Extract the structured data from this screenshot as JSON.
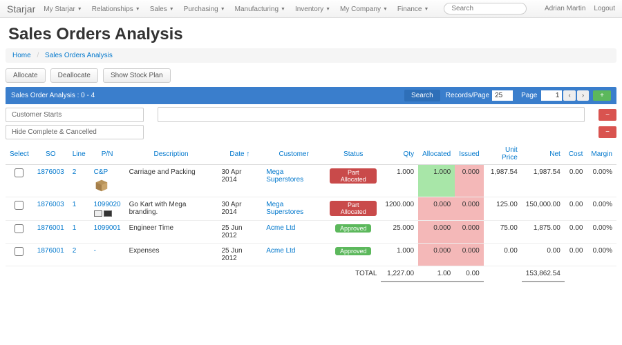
{
  "nav": {
    "brand": "Starjar",
    "items": [
      "My Starjar",
      "Relationships",
      "Sales",
      "Purchasing",
      "Manufacturing",
      "Inventory",
      "My Company",
      "Finance"
    ],
    "search_placeholder": "Search",
    "user": "Adrian Martin",
    "logout": "Logout"
  },
  "page": {
    "title": "Sales Orders Analysis",
    "breadcrumb_home": "Home",
    "breadcrumb_current": "Sales Orders Analysis"
  },
  "toolbar": {
    "allocate": "Allocate",
    "deallocate": "Deallocate",
    "show_stock": "Show Stock Plan"
  },
  "bar": {
    "title": "Sales Order Analysis : 0 - 4",
    "search": "Search",
    "records_page": "Records/Page",
    "rp_value": "25",
    "page_label": "Page",
    "page_value": "1",
    "prev": "‹",
    "next": "›",
    "plus": "+"
  },
  "filters": {
    "customer": "Customer Starts",
    "hide": "Hide Complete & Cancelled",
    "minus": "−"
  },
  "table": {
    "headers": [
      "Select",
      "SO",
      "Line",
      "P/N",
      "Description",
      "Date ↑",
      "Customer",
      "Status",
      "Qty",
      "Allocated",
      "Issued",
      "Unit Price",
      "Net",
      "Cost",
      "Margin"
    ],
    "rows": [
      {
        "so": "1876003",
        "line": "2",
        "pn": "C&P",
        "pn_icon": "box",
        "desc": "Carriage and Packing",
        "date": "30 Apr 2014",
        "cust": "Mega Superstores",
        "status": "Part Allocated",
        "status_class": "badge-part",
        "qty": "1.000",
        "alloc": "1.000",
        "alloc_class": "cell-green",
        "issued": "0.000",
        "issued_class": "cell-red",
        "unit": "1,987.54",
        "net": "1,987.54",
        "cost": "0.00",
        "margin": "0.00%"
      },
      {
        "so": "1876003",
        "line": "1",
        "pn": "1099020",
        "pn_icon": "gk",
        "desc": "Go Kart with Mega branding.",
        "date": "30 Apr 2014",
        "cust": "Mega Superstores",
        "status": "Part Allocated",
        "status_class": "badge-part",
        "qty": "1200.000",
        "alloc": "0.000",
        "alloc_class": "cell-red",
        "issued": "0.000",
        "issued_class": "cell-red",
        "unit": "125.00",
        "net": "150,000.00",
        "cost": "0.00",
        "margin": "0.00%"
      },
      {
        "so": "1876001",
        "line": "1",
        "pn": "1099001",
        "pn_icon": "",
        "desc": "Engineer Time",
        "date": "25 Jun 2012",
        "cust": "Acme Ltd",
        "status": "Approved",
        "status_class": "badge-appr",
        "qty": "25.000",
        "alloc": "0.000",
        "alloc_class": "cell-red",
        "issued": "0.000",
        "issued_class": "cell-red",
        "unit": "75.00",
        "net": "1,875.00",
        "cost": "0.00",
        "margin": "0.00%"
      },
      {
        "so": "1876001",
        "line": "2",
        "pn": "-",
        "pn_icon": "",
        "desc": "Expenses",
        "date": "25 Jun 2012",
        "cust": "Acme Ltd",
        "status": "Approved",
        "status_class": "badge-appr",
        "qty": "1.000",
        "alloc": "0.000",
        "alloc_class": "cell-red",
        "issued": "0.000",
        "issued_class": "cell-red",
        "unit": "0.00",
        "net": "0.00",
        "cost": "0.00",
        "margin": "0.00%"
      }
    ],
    "total_label": "TOTAL",
    "totals": {
      "qty": "1,227.00",
      "alloc": "1.00",
      "issued": "0.00",
      "net": "153,862.54"
    }
  }
}
